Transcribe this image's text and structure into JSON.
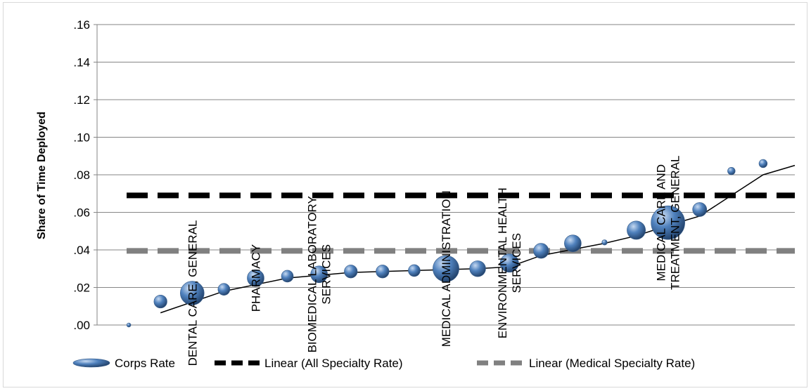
{
  "chart_data": {
    "type": "scatter",
    "ylabel": "Share of Time Deployed",
    "ylim": [
      0,
      0.16
    ],
    "yticks": [
      ".00",
      ".02",
      ".04",
      ".06",
      ".08",
      ".10",
      ".12",
      ".14",
      ".16"
    ],
    "gridlines": true,
    "legend_position": "bottom",
    "legend": [
      "Corps Rate",
      "Linear (All Specialty Rate)",
      "Linear (Medical Specialty Rate)"
    ],
    "x_count": 22,
    "series": [
      {
        "name": "Corps Rate",
        "marker": "bubble",
        "color": "#4f81bd",
        "points": [
          {
            "x": 1,
            "y": 0.0,
            "size": 0.3
          },
          {
            "x": 2,
            "y": 0.0125,
            "size": 3
          },
          {
            "x": 3,
            "y": 0.017,
            "size": 10,
            "label": "DENTAL CARE, GENERAL"
          },
          {
            "x": 4,
            "y": 0.019,
            "size": 2.5
          },
          {
            "x": 5,
            "y": 0.025,
            "size": 5,
            "label": "PHARMACY"
          },
          {
            "x": 6,
            "y": 0.026,
            "size": 2.5
          },
          {
            "x": 7,
            "y": 0.027,
            "size": 5,
            "label": "BIOMEDICAL LABORATORY SERVICES"
          },
          {
            "x": 8,
            "y": 0.0285,
            "size": 3
          },
          {
            "x": 9,
            "y": 0.0285,
            "size": 3
          },
          {
            "x": 10,
            "y": 0.029,
            "size": 2.5
          },
          {
            "x": 11,
            "y": 0.03,
            "size": 12,
            "label": "MEDICAL ADMINISTRATION"
          },
          {
            "x": 12,
            "y": 0.03,
            "size": 4.5
          },
          {
            "x": 13,
            "y": 0.033,
            "size": 6,
            "label": "ENVIRONMENTAL HEALTH SERVICES"
          },
          {
            "x": 14,
            "y": 0.0395,
            "size": 4
          },
          {
            "x": 15,
            "y": 0.0435,
            "size": 5
          },
          {
            "x": 16,
            "y": 0.044,
            "size": 0.5
          },
          {
            "x": 17,
            "y": 0.0505,
            "size": 6
          },
          {
            "x": 18,
            "y": 0.0545,
            "size": 20,
            "label": "MEDICAL CARE AND TREATMENT, GENERAL"
          },
          {
            "x": 19,
            "y": 0.0615,
            "size": 3.5
          },
          {
            "x": 20,
            "y": 0.082,
            "size": 1
          },
          {
            "x": 21,
            "y": 0.086,
            "size": 1.2
          }
        ]
      },
      {
        "name": "Corps Rate trend",
        "type": "line",
        "color": "#000000",
        "points": [
          {
            "x": 2,
            "y": 0.0065
          },
          {
            "x": 4,
            "y": 0.018
          },
          {
            "x": 6,
            "y": 0.025
          },
          {
            "x": 8,
            "y": 0.028
          },
          {
            "x": 10,
            "y": 0.029
          },
          {
            "x": 12,
            "y": 0.03
          },
          {
            "x": 13,
            "y": 0.031
          },
          {
            "x": 14,
            "y": 0.037
          },
          {
            "x": 16,
            "y": 0.0435
          },
          {
            "x": 17,
            "y": 0.0475
          },
          {
            "x": 18,
            "y": 0.053
          },
          {
            "x": 19,
            "y": 0.058
          },
          {
            "x": 20,
            "y": 0.069
          },
          {
            "x": 21,
            "y": 0.08
          },
          {
            "x": 22,
            "y": 0.085
          }
        ]
      },
      {
        "name": "Linear (All Specialty Rate)",
        "type": "line",
        "dashed": true,
        "color": "#000000",
        "value": 0.069
      },
      {
        "name": "Linear (Medical Specialty Rate)",
        "type": "line",
        "dashed": true,
        "color": "#808080",
        "value": 0.0395
      }
    ]
  }
}
